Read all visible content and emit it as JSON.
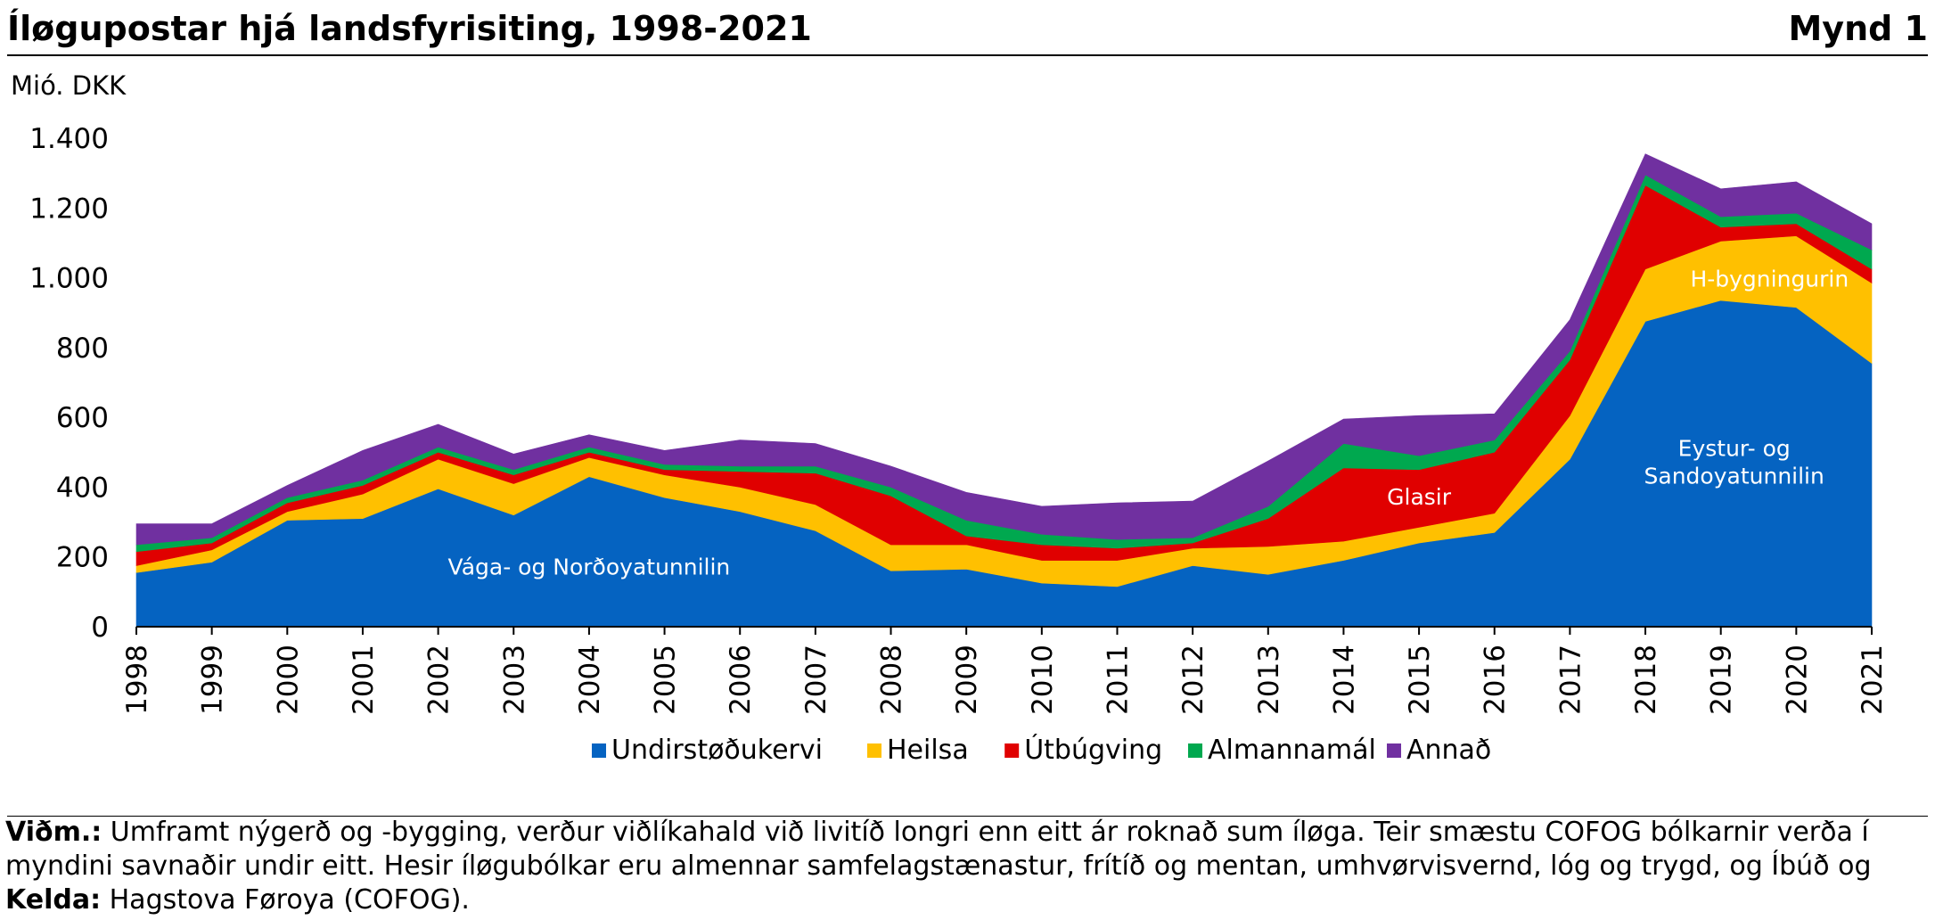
{
  "header": {
    "title": "Íløgupostar hjá landsfyrisiting, 1998-2021",
    "figure_number": "Mynd 1"
  },
  "notes": {
    "note_label": "Viðm.:",
    "note_line1": "Umframt nýgerð og -bygging, verður viðlíkahald við livitíð longri enn eitt ár roknað sum íløga. Teir smæstu COFOG bólkarnir verða í",
    "note_line2": "myndini savnaðir undir eitt. Hesir íløgubólkar eru almennar samfelagstænastur, frítíð og mentan, umhvørvisvernd, lóg og trygd, og Íbúð og",
    "source_label": "Kelda:",
    "source_text": "Hagstova Føroya (COFOG)."
  },
  "chart_data": {
    "type": "area",
    "stacked": true,
    "ylabel": "Mió. DKK",
    "ylim": [
      0,
      1400
    ],
    "yticks": [
      0,
      200,
      400,
      600,
      800,
      1000,
      1200,
      1400
    ],
    "ytick_labels": [
      "0",
      "200",
      "400",
      "600",
      "800",
      "1.000",
      "1.200",
      "1.400"
    ],
    "categories": [
      "1998",
      "1999",
      "2000",
      "2001",
      "2002",
      "2003",
      "2004",
      "2005",
      "2006",
      "2007",
      "2008",
      "2009",
      "2010",
      "2011",
      "2012",
      "2013",
      "2014",
      "2015",
      "2016",
      "2017",
      "2018",
      "2019",
      "2020",
      "2021"
    ],
    "series": [
      {
        "name": "Undirstøðukervi",
        "color": "#0563C1",
        "values": [
          155,
          185,
          305,
          310,
          395,
          320,
          430,
          370,
          330,
          275,
          160,
          165,
          125,
          115,
          175,
          150,
          190,
          240,
          270,
          480,
          875,
          935,
          915,
          755
        ]
      },
      {
        "name": "Heilsa",
        "color": "#FFC000",
        "values": [
          20,
          35,
          25,
          70,
          85,
          90,
          55,
          65,
          70,
          75,
          75,
          70,
          65,
          75,
          50,
          80,
          55,
          45,
          55,
          125,
          150,
          170,
          205,
          230
        ]
      },
      {
        "name": "Útbúgving",
        "color": "#E00000",
        "values": [
          40,
          20,
          25,
          25,
          20,
          25,
          15,
          15,
          45,
          90,
          140,
          25,
          45,
          35,
          15,
          80,
          210,
          165,
          175,
          160,
          240,
          40,
          35,
          40
        ]
      },
      {
        "name": "Almannamál",
        "color": "#00A84F",
        "values": [
          20,
          15,
          15,
          15,
          15,
          15,
          15,
          15,
          15,
          20,
          25,
          45,
          30,
          25,
          15,
          35,
          70,
          40,
          35,
          25,
          30,
          30,
          30,
          55
        ]
      },
      {
        "name": "Annað",
        "color": "#7030A0",
        "values": [
          60,
          40,
          35,
          85,
          65,
          45,
          35,
          40,
          75,
          65,
          60,
          80,
          80,
          105,
          105,
          130,
          70,
          115,
          75,
          90,
          60,
          80,
          90,
          75
        ]
      }
    ],
    "annotations": [
      {
        "text": "Vága- og Norðoyatunnilin",
        "x": "2004",
        "y": 175
      },
      {
        "text": "Glasir",
        "x": "2015",
        "y": 375
      },
      {
        "text": "H-bygningurin",
        "x": "2020",
        "y": 1000
      },
      {
        "text": "Eystur- og",
        "x": "2019",
        "y": 515
      },
      {
        "text": "Sandoyatunnilin",
        "x": "2019",
        "y": 435
      }
    ],
    "legend_position": "bottom",
    "grid": false
  }
}
